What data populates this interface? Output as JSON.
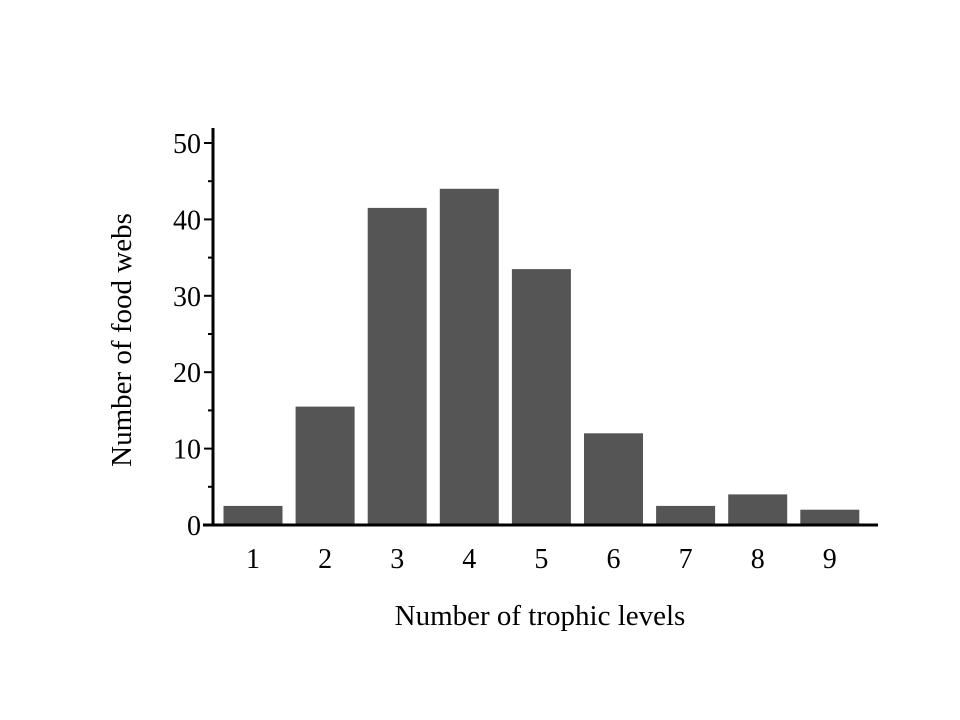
{
  "chart_data": {
    "type": "bar",
    "title": "",
    "xlabel": "Number of trophic levels",
    "ylabel": "Number of food webs",
    "categories": [
      "1",
      "2",
      "3",
      "4",
      "5",
      "6",
      "7",
      "8",
      "9"
    ],
    "values": [
      2.5,
      15.5,
      41.5,
      44,
      33.5,
      12,
      2.5,
      4,
      2
    ],
    "ylim": [
      0,
      50
    ],
    "yticks": [
      0,
      10,
      20,
      30,
      40,
      50
    ],
    "grid": false,
    "legend": "none",
    "bar_color": "#555555",
    "axis_color": "#000000"
  }
}
